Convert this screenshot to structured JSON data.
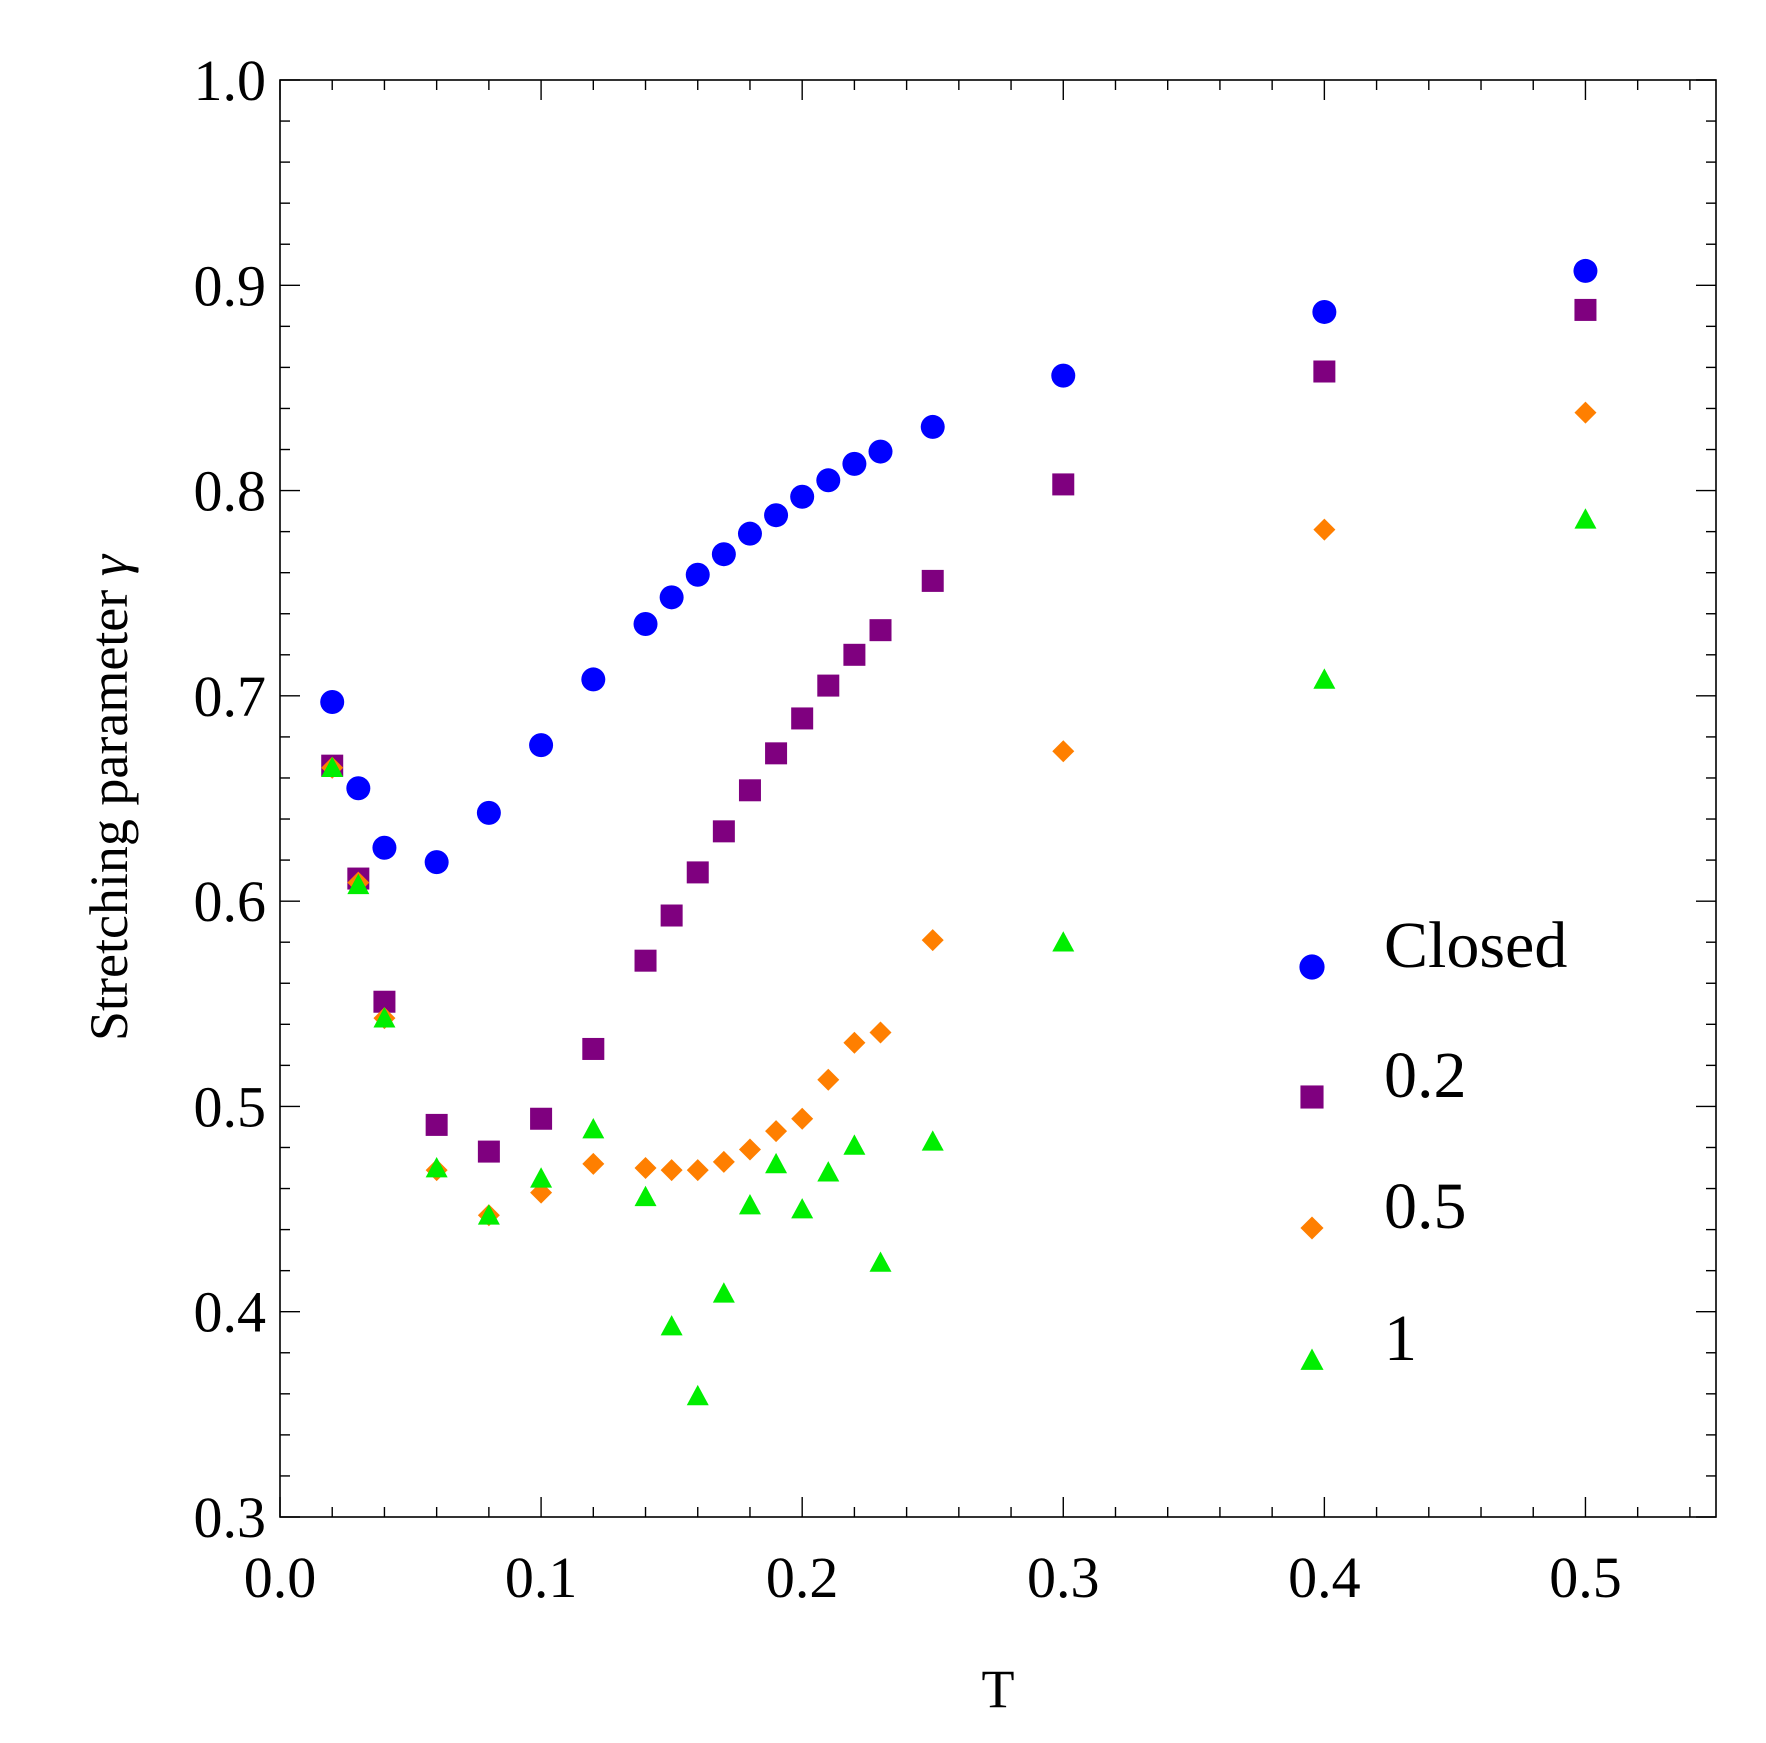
{
  "chart_data": {
    "type": "scatter",
    "title": "",
    "xlabel": "T",
    "ylabel": "Stretching parameter",
    "ylabel_symbol": "γ",
    "xlim": [
      0.0,
      0.55
    ],
    "ylim": [
      0.3,
      1.0
    ],
    "x_ticks": [
      0.0,
      0.1,
      0.2,
      0.3,
      0.4,
      0.5
    ],
    "x_tick_labels": [
      "0.0",
      "0.1",
      "0.2",
      "0.3",
      "0.4",
      "0.5"
    ],
    "y_ticks": [
      0.3,
      0.4,
      0.5,
      0.6,
      0.7,
      0.8,
      0.9,
      1.0
    ],
    "y_tick_labels": [
      "0.3",
      "0.4",
      "0.5",
      "0.6",
      "0.7",
      "0.8",
      "0.9",
      "1.0"
    ],
    "grid": false,
    "legend_position": "right-middle",
    "series": [
      {
        "name": "Closed",
        "marker": "circle",
        "color": "#0000ff",
        "x": [
          0.02,
          0.03,
          0.04,
          0.06,
          0.08,
          0.1,
          0.12,
          0.14,
          0.15,
          0.16,
          0.17,
          0.18,
          0.19,
          0.2,
          0.21,
          0.22,
          0.23,
          0.25,
          0.3,
          0.4,
          0.5
        ],
        "y": [
          0.697,
          0.655,
          0.626,
          0.619,
          0.643,
          0.676,
          0.708,
          0.735,
          0.748,
          0.759,
          0.769,
          0.779,
          0.788,
          0.797,
          0.805,
          0.813,
          0.819,
          0.831,
          0.856,
          0.887,
          0.907
        ]
      },
      {
        "name": "0.2",
        "marker": "square",
        "color": "#7f007f",
        "x": [
          0.02,
          0.03,
          0.04,
          0.06,
          0.08,
          0.1,
          0.12,
          0.14,
          0.15,
          0.16,
          0.17,
          0.18,
          0.19,
          0.2,
          0.21,
          0.22,
          0.23,
          0.25,
          0.3,
          0.4,
          0.5
        ],
        "y": [
          0.666,
          0.611,
          0.551,
          0.491,
          0.478,
          0.494,
          0.528,
          0.571,
          0.593,
          0.614,
          0.634,
          0.654,
          0.672,
          0.689,
          0.705,
          0.72,
          0.732,
          0.756,
          0.803,
          0.858,
          0.888
        ]
      },
      {
        "name": "0.5",
        "marker": "diamond",
        "color": "#ff7f00",
        "x": [
          0.02,
          0.03,
          0.04,
          0.06,
          0.08,
          0.1,
          0.12,
          0.14,
          0.15,
          0.16,
          0.17,
          0.18,
          0.19,
          0.2,
          0.21,
          0.22,
          0.23,
          0.25,
          0.3,
          0.4,
          0.5
        ],
        "y": [
          0.665,
          0.609,
          0.543,
          0.469,
          0.447,
          0.458,
          0.472,
          0.47,
          0.469,
          0.469,
          0.473,
          0.479,
          0.488,
          0.494,
          0.513,
          0.531,
          0.536,
          0.581,
          0.673,
          0.781,
          0.838
        ]
      },
      {
        "name": "1",
        "marker": "triangle",
        "color": "#00ee00",
        "x": [
          0.02,
          0.03,
          0.04,
          0.06,
          0.08,
          0.1,
          0.12,
          0.14,
          0.15,
          0.16,
          0.17,
          0.18,
          0.19,
          0.2,
          0.21,
          0.22,
          0.23,
          0.25,
          0.3,
          0.4,
          0.5
        ],
        "y": [
          0.665,
          0.608,
          0.543,
          0.47,
          0.447,
          0.465,
          0.489,
          0.456,
          0.393,
          0.359,
          0.409,
          0.452,
          0.472,
          0.45,
          0.468,
          0.481,
          0.424,
          0.483,
          0.58,
          0.708,
          0.786
        ]
      }
    ]
  }
}
